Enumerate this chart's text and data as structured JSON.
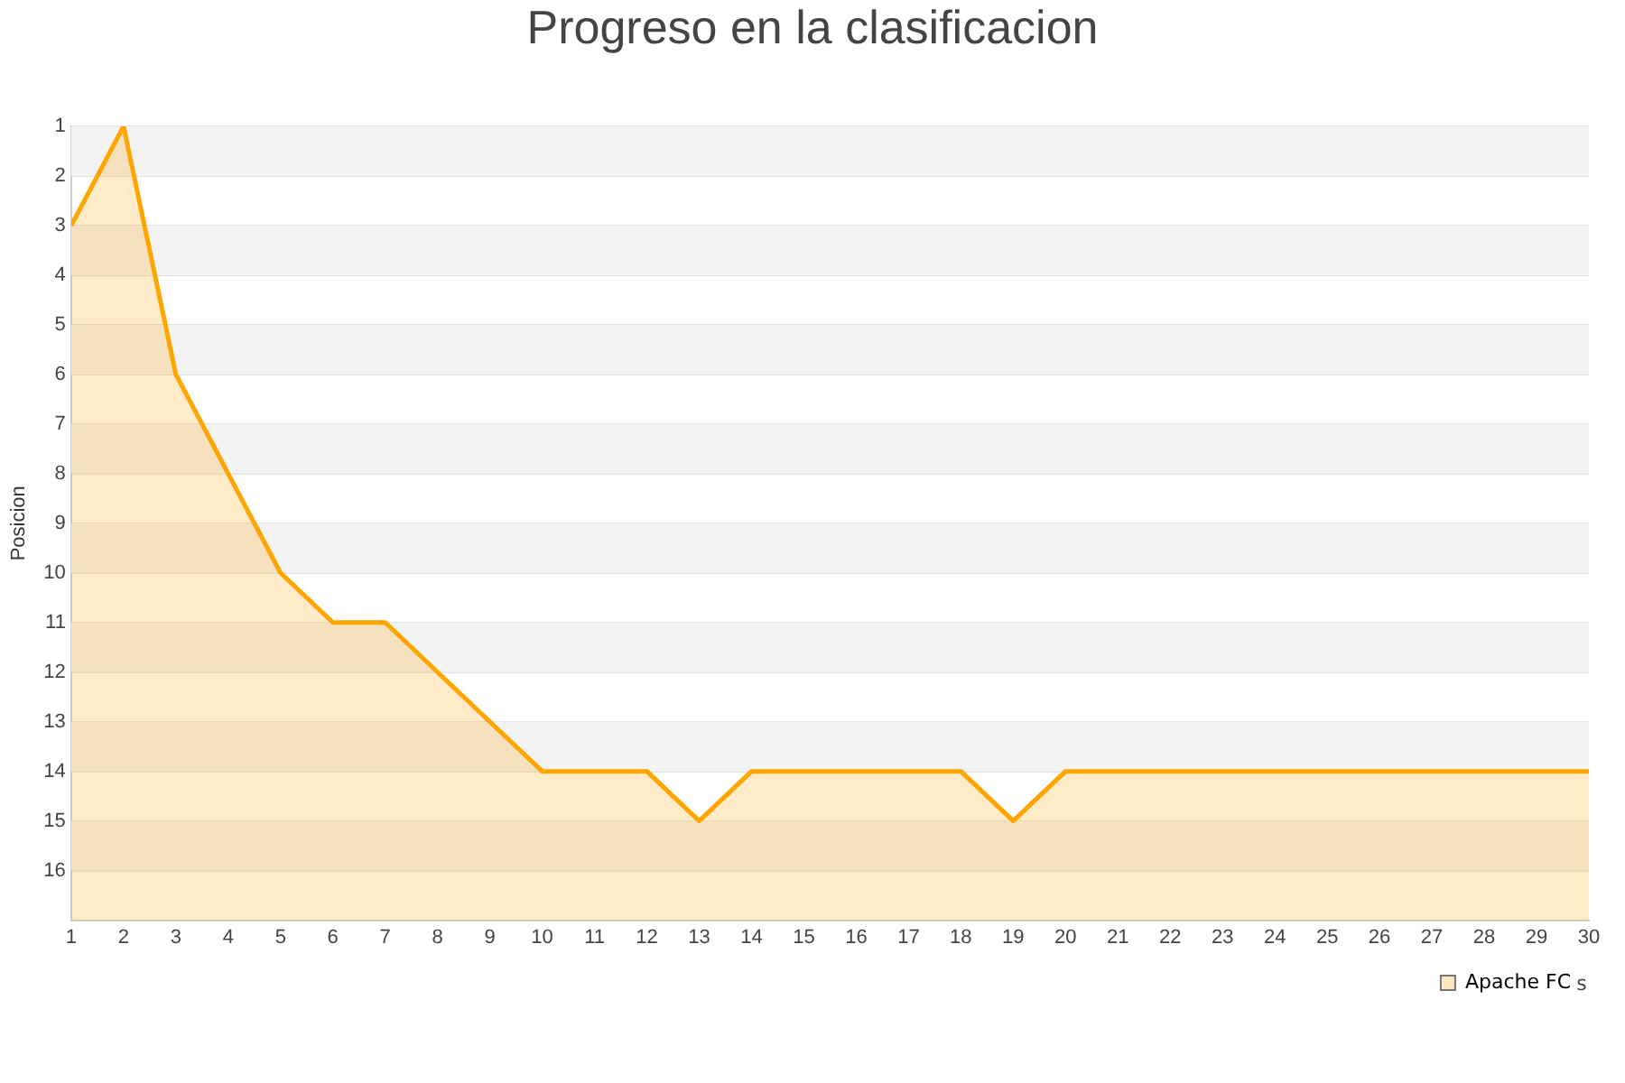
{
  "chart_data": {
    "type": "area",
    "title": "Progreso en la clasificacion",
    "xlabel": "s",
    "ylabel": "Posicion",
    "x": [
      1,
      2,
      3,
      4,
      5,
      6,
      7,
      8,
      9,
      10,
      11,
      12,
      13,
      14,
      15,
      16,
      17,
      18,
      19,
      20,
      21,
      22,
      23,
      24,
      25,
      26,
      27,
      28,
      29,
      30
    ],
    "series": [
      {
        "name": "Apache FC",
        "color": "#ffa500",
        "values": [
          3,
          1,
          6,
          8,
          10,
          11,
          11,
          12,
          13,
          14,
          14,
          14,
          15,
          14,
          14,
          14,
          14,
          14,
          15,
          14,
          14,
          14,
          14,
          14,
          14,
          14,
          14,
          14,
          14,
          14
        ]
      }
    ],
    "xlim": [
      1,
      30
    ],
    "xticks": [
      1,
      2,
      3,
      4,
      5,
      6,
      7,
      8,
      9,
      10,
      11,
      12,
      13,
      14,
      15,
      16,
      17,
      18,
      19,
      20,
      21,
      22,
      23,
      24,
      25,
      26,
      27,
      28,
      29,
      30
    ],
    "ylim": [
      17,
      1
    ],
    "yticks": [
      1,
      2,
      3,
      4,
      5,
      6,
      7,
      8,
      9,
      10,
      11,
      12,
      13,
      14,
      15,
      16
    ],
    "grid": "y",
    "legend": "bottom right",
    "marker": "none",
    "line_style": "solid"
  }
}
